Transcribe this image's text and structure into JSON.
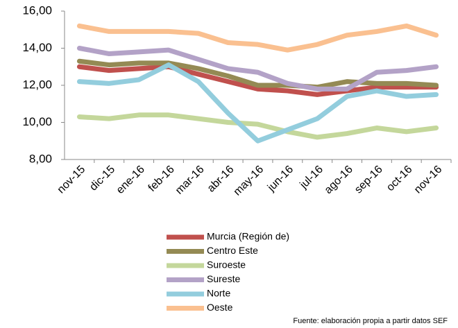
{
  "chart_data": {
    "type": "line",
    "categories": [
      "nov-15",
      "dic-15",
      "ene-16",
      "feb-16",
      "mar-16",
      "abr-16",
      "may-16",
      "jun-16",
      "jul-16",
      "ago-16",
      "sep-16",
      "oct-16",
      "nov-16"
    ],
    "series": [
      {
        "name": "Murcia (Región de)",
        "color": "#c0504d",
        "values": [
          13.0,
          12.8,
          12.9,
          13.0,
          12.6,
          12.2,
          11.8,
          11.7,
          11.5,
          11.7,
          11.9,
          11.9,
          11.9
        ]
      },
      {
        "name": "Centro Este",
        "color": "#948a54",
        "values": [
          13.3,
          13.1,
          13.2,
          13.2,
          12.9,
          12.5,
          12.0,
          12.0,
          11.9,
          12.2,
          12.1,
          12.1,
          12.0
        ]
      },
      {
        "name": "Suroeste",
        "color": "#c4d79b",
        "values": [
          10.3,
          10.2,
          10.4,
          10.4,
          10.2,
          10.0,
          9.9,
          9.5,
          9.2,
          9.4,
          9.7,
          9.5,
          9.7
        ]
      },
      {
        "name": "Sureste",
        "color": "#b3a2c7",
        "values": [
          14.0,
          13.7,
          13.8,
          13.9,
          13.4,
          12.9,
          12.7,
          12.1,
          11.8,
          11.8,
          12.7,
          12.8,
          13.0
        ]
      },
      {
        "name": "Norte",
        "color": "#93cddd",
        "values": [
          12.2,
          12.1,
          12.3,
          13.1,
          12.2,
          10.5,
          9.0,
          9.6,
          10.2,
          11.4,
          11.7,
          11.4,
          11.5
        ]
      },
      {
        "name": "Oeste",
        "color": "#fac090",
        "values": [
          15.2,
          14.9,
          14.9,
          14.9,
          14.8,
          14.3,
          14.2,
          13.9,
          14.2,
          14.7,
          14.9,
          15.2,
          14.7
        ]
      }
    ],
    "ylim": [
      8,
      16
    ],
    "yticks": [
      {
        "value": 8,
        "label": "8,00"
      },
      {
        "value": 10,
        "label": "10,00"
      },
      {
        "value": 12,
        "label": "12,00"
      },
      {
        "value": 14,
        "label": "14,00"
      },
      {
        "value": 16,
        "label": "16,00"
      }
    ],
    "grid": false,
    "note": "Fuente: elaboración propia a partir datos SEF"
  }
}
